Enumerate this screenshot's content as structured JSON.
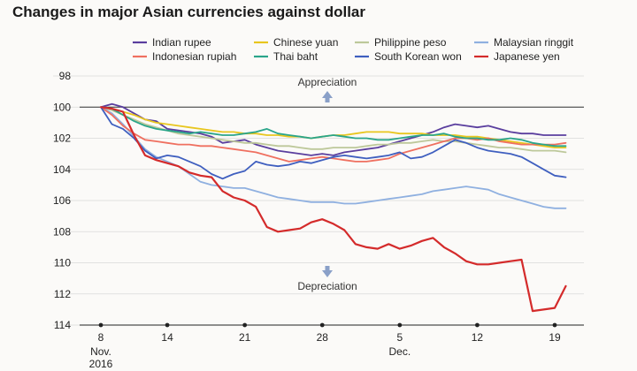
{
  "chart_data": {
    "type": "line",
    "title": "Changes in major Asian currencies against dollar",
    "xlabel": "",
    "ylabel": "",
    "ylim": [
      98,
      114
    ],
    "y_inverted": true,
    "yticks": [
      "98",
      "100",
      "102",
      "104",
      "106",
      "108",
      "110",
      "112",
      "114"
    ],
    "xlim": [
      8,
      50
    ],
    "xticks": [
      {
        "x": 8,
        "label": "8",
        "sub": "Nov.\n2016"
      },
      {
        "x": 14,
        "label": "14",
        "sub": ""
      },
      {
        "x": 21,
        "label": "21",
        "sub": ""
      },
      {
        "x": 28,
        "label": "28",
        "sub": ""
      },
      {
        "x": 35,
        "label": "5",
        "sub": "Dec."
      },
      {
        "x": 42,
        "label": "12",
        "sub": ""
      },
      {
        "x": 49,
        "label": "19",
        "sub": ""
      }
    ],
    "x": [
      8,
      9,
      10,
      11,
      12,
      13,
      14,
      15,
      16,
      17,
      18,
      19,
      20,
      21,
      22,
      23,
      24,
      25,
      26,
      27,
      28,
      29,
      30,
      31,
      32,
      33,
      34,
      35,
      36,
      37,
      38,
      39,
      40,
      41,
      42,
      43,
      44,
      45,
      46,
      47,
      48,
      49,
      50
    ],
    "legend_placement": "top",
    "annotations": {
      "top": "Appreciation",
      "bottom": "Depreciation"
    },
    "reference_line": 100,
    "series": [
      {
        "name": "Indian rupee",
        "color": "#5a3e9e",
        "values": [
          100,
          99.8,
          100,
          100.4,
          100.8,
          100.9,
          101.4,
          101.5,
          101.6,
          101.7,
          101.9,
          102.3,
          102.2,
          102.1,
          102.4,
          102.6,
          102.8,
          102.9,
          103.0,
          103.1,
          103.0,
          103.1,
          102.9,
          102.8,
          102.7,
          102.6,
          102.4,
          102.2,
          102.0,
          101.8,
          101.6,
          101.3,
          101.1,
          101.2,
          101.3,
          101.2,
          101.4,
          101.6,
          101.7,
          101.7,
          101.8,
          101.8,
          101.8
        ]
      },
      {
        "name": "Chinese yuan",
        "color": "#e8c61e",
        "values": [
          100,
          100.1,
          100.3,
          100.5,
          100.8,
          101.0,
          101.1,
          101.2,
          101.3,
          101.4,
          101.5,
          101.6,
          101.6,
          101.7,
          101.7,
          101.8,
          101.8,
          101.9,
          101.9,
          102.0,
          101.9,
          101.8,
          101.8,
          101.7,
          101.6,
          101.6,
          101.6,
          101.7,
          101.7,
          101.7,
          101.8,
          101.8,
          101.8,
          101.9,
          101.9,
          102.0,
          102.1,
          102.2,
          102.3,
          102.4,
          102.5,
          102.6,
          102.6
        ]
      },
      {
        "name": "Philippine peso",
        "color": "#bdc89a",
        "values": [
          100,
          100.2,
          100.5,
          100.8,
          101.1,
          101.3,
          101.5,
          101.7,
          101.8,
          101.9,
          102.0,
          102.1,
          102.2,
          102.3,
          102.3,
          102.4,
          102.5,
          102.5,
          102.6,
          102.7,
          102.7,
          102.6,
          102.6,
          102.6,
          102.5,
          102.4,
          102.4,
          102.3,
          102.3,
          102.2,
          102.1,
          102.2,
          102.2,
          102.3,
          102.4,
          102.5,
          102.6,
          102.6,
          102.7,
          102.8,
          102.8,
          102.8,
          102.9
        ]
      },
      {
        "name": "Malaysian ringgit",
        "color": "#8fb0e0",
        "values": [
          100,
          100.4,
          101.1,
          101.9,
          102.7,
          103.2,
          103.5,
          103.8,
          104.3,
          104.8,
          105.0,
          105.1,
          105.2,
          105.2,
          105.4,
          105.6,
          105.8,
          105.9,
          106.0,
          106.1,
          106.1,
          106.1,
          106.2,
          106.2,
          106.1,
          106.0,
          105.9,
          105.8,
          105.7,
          105.6,
          105.4,
          105.3,
          105.2,
          105.1,
          105.2,
          105.3,
          105.6,
          105.8,
          106.0,
          106.2,
          106.4,
          106.5,
          106.5
        ]
      },
      {
        "name": "Indonesian rupiah",
        "color": "#ef7060",
        "values": [
          100,
          100.5,
          101.2,
          101.7,
          102.1,
          102.2,
          102.3,
          102.4,
          102.4,
          102.5,
          102.5,
          102.6,
          102.7,
          102.8,
          102.9,
          103.1,
          103.3,
          103.5,
          103.4,
          103.3,
          103.2,
          103.3,
          103.4,
          103.5,
          103.5,
          103.4,
          103.3,
          103.0,
          102.8,
          102.6,
          102.4,
          102.2,
          102.0,
          102.0,
          102.1,
          102.0,
          102.2,
          102.3,
          102.4,
          102.4,
          102.4,
          102.4,
          102.3
        ]
      },
      {
        "name": "Thai baht",
        "color": "#2aa58a",
        "values": [
          100,
          100.1,
          100.5,
          100.9,
          101.2,
          101.4,
          101.5,
          101.6,
          101.7,
          101.6,
          101.7,
          101.8,
          101.8,
          101.7,
          101.6,
          101.4,
          101.7,
          101.8,
          101.9,
          102.0,
          101.9,
          101.8,
          101.9,
          102.0,
          102.0,
          102.1,
          102.1,
          102.0,
          101.9,
          101.8,
          101.8,
          101.7,
          101.9,
          102.0,
          102.0,
          102.1,
          102.1,
          102.0,
          102.1,
          102.3,
          102.4,
          102.5,
          102.5
        ]
      },
      {
        "name": "South Korean won",
        "color": "#3f5fbf",
        "values": [
          100,
          101.1,
          101.4,
          102.0,
          102.8,
          103.3,
          103.1,
          103.2,
          103.5,
          103.8,
          104.3,
          104.6,
          104.3,
          104.1,
          103.5,
          103.7,
          103.8,
          103.7,
          103.5,
          103.6,
          103.4,
          103.2,
          103.1,
          103.2,
          103.3,
          103.2,
          103.1,
          102.9,
          103.3,
          103.2,
          102.9,
          102.5,
          102.1,
          102.3,
          102.6,
          102.8,
          102.9,
          103.0,
          103.2,
          103.6,
          104.0,
          104.4,
          104.5
        ]
      },
      {
        "name": "Japanese yen",
        "color": "#d42b2b",
        "values": [
          100,
          100.1,
          100.3,
          101.8,
          103.1,
          103.4,
          103.6,
          103.8,
          104.2,
          104.4,
          104.5,
          105.4,
          105.8,
          106.0,
          106.4,
          107.7,
          108.0,
          107.9,
          107.8,
          107.4,
          107.2,
          107.5,
          107.9,
          108.8,
          109.0,
          109.1,
          108.8,
          109.1,
          108.9,
          108.6,
          108.4,
          109.0,
          109.4,
          109.9,
          110.1,
          110.1,
          110.0,
          109.9,
          109.8,
          113.1,
          113.0,
          112.9,
          111.5
        ]
      }
    ]
  }
}
